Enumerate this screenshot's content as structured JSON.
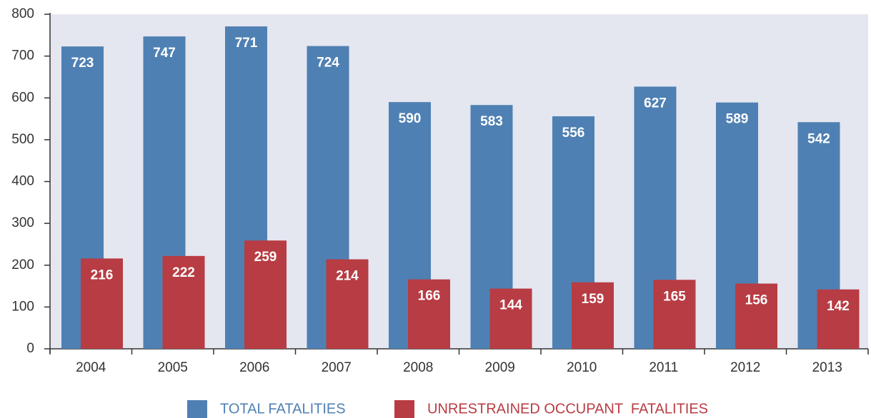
{
  "chart_data": {
    "type": "bar",
    "categories": [
      "2004",
      "2005",
      "2006",
      "2007",
      "2008",
      "2009",
      "2010",
      "2011",
      "2012",
      "2013"
    ],
    "series": [
      {
        "name": "TOTAL FATALITIES",
        "color": "#4f80b3",
        "values": [
          723,
          747,
          771,
          724,
          590,
          583,
          556,
          627,
          589,
          542
        ]
      },
      {
        "name": "UNRESTRAINED OCCUPANT  FATALITIES",
        "color": "#b83c43",
        "values": [
          216,
          222,
          259,
          214,
          166,
          144,
          159,
          165,
          156,
          142
        ]
      }
    ],
    "ylim": [
      0,
      800
    ],
    "yticks": [
      0,
      100,
      200,
      300,
      400,
      500,
      600,
      700,
      800
    ]
  }
}
